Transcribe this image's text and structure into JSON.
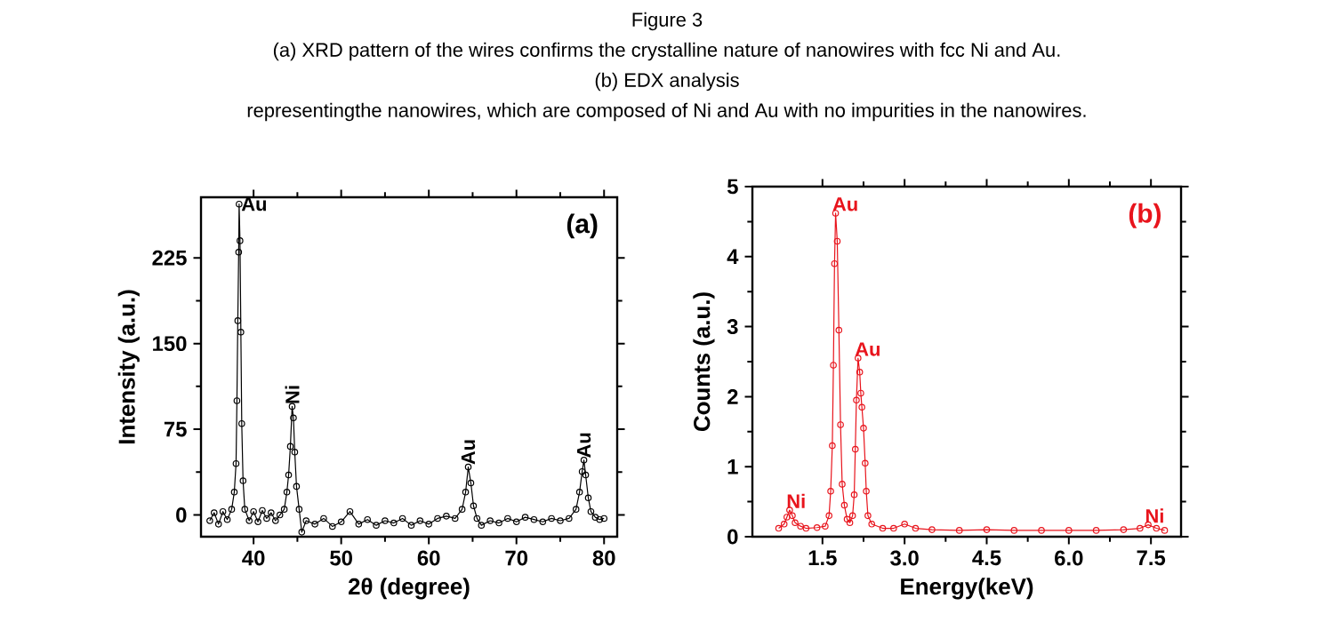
{
  "chart_data": [
    {
      "type": "other",
      "title": "Figure 3",
      "annotations": [
        "(a) XRD pattern of the wires confirms the crystalline nature of nanowires with fcc Ni and Au.",
        "(b) EDX analysis",
        "representingthe nanowires, which are composed of Ni and Au with no impurities in the nanowires."
      ]
    },
    {
      "type": "line",
      "title": "(a)",
      "xlabel": "2θ (degree)",
      "ylabel": "Intensity (a.u.)",
      "marker": "circle",
      "line_style": "solid",
      "xlim": [
        34,
        81.5
      ],
      "xticks": [
        40,
        50,
        60,
        70,
        80
      ],
      "ylim": [
        -19,
        278
      ],
      "yticks": [
        0,
        75,
        150,
        225
      ],
      "annotations": [
        {
          "text": "Au",
          "x": 38.35,
          "y": 272
        },
        {
          "text": "Ni",
          "x": 44.4,
          "y": 95
        },
        {
          "text": "Au",
          "x": 64.5,
          "y": 42
        },
        {
          "text": "Au",
          "x": 77.7,
          "y": 48
        }
      ],
      "series": [
        {
          "color": "#000000",
          "x": [
            35,
            35.5,
            36,
            36.5,
            37,
            37.5,
            37.8,
            38,
            38.1,
            38.2,
            38.3,
            38.35,
            38.45,
            38.55,
            38.65,
            38.8,
            39,
            39.5,
            40,
            40.5,
            41,
            41.5,
            42,
            42.5,
            43,
            43.5,
            43.8,
            44,
            44.2,
            44.4,
            44.55,
            44.7,
            44.9,
            45.2,
            45.5,
            46,
            47,
            48,
            49,
            50,
            51,
            52,
            53,
            54,
            55,
            56,
            57,
            58,
            59,
            60,
            61,
            62,
            63,
            63.8,
            64.2,
            64.5,
            64.8,
            65.1,
            65.5,
            66,
            67,
            68,
            69,
            70,
            71,
            72,
            73,
            74,
            75,
            76,
            76.8,
            77.2,
            77.5,
            77.7,
            77.9,
            78.2,
            78.5,
            79,
            79.5,
            80
          ],
          "values": [
            -5,
            2,
            -8,
            3,
            -4,
            5,
            20,
            45,
            100,
            170,
            230,
            272,
            240,
            160,
            80,
            30,
            5,
            -5,
            3,
            -6,
            4,
            -3,
            2,
            -5,
            0,
            5,
            20,
            35,
            60,
            95,
            85,
            55,
            25,
            5,
            -15,
            -5,
            -8,
            -3,
            -10,
            -6,
            3,
            -8,
            -4,
            -9,
            -5,
            -7,
            -3,
            -9,
            -5,
            -8,
            -3,
            -1,
            -3,
            5,
            20,
            42,
            28,
            8,
            -3,
            -9,
            -5,
            -7,
            -3,
            -6,
            -2,
            -4,
            -6,
            -3,
            -5,
            -3,
            5,
            20,
            38,
            48,
            35,
            15,
            3,
            -2,
            -4,
            -3
          ]
        }
      ]
    },
    {
      "type": "line",
      "title": "(b)",
      "xlabel": "Energy(keV)",
      "ylabel": "Counts (a.u.)",
      "marker": "circle",
      "line_style": "solid",
      "xlim": [
        0.22,
        8.05
      ],
      "xticks": [
        1.5,
        {
          "value": 3,
          "label": "3.0"
        },
        4.5,
        {
          "value": 6,
          "label": "6.0"
        },
        7.5
      ],
      "ylim": [
        0,
        5
      ],
      "yticks": [
        0,
        1,
        2,
        3,
        4,
        5
      ],
      "annotations": [
        {
          "text": "Ni",
          "x": 0.9,
          "y": 0.38
        },
        {
          "text": "Au",
          "x": 1.74,
          "y": 4.62
        },
        {
          "text": "Au",
          "x": 2.15,
          "y": 2.55
        },
        {
          "text": "Ni",
          "x": 7.45,
          "y": 0.17
        }
      ],
      "series": [
        {
          "color": "#e8141c",
          "x": [
            0.7,
            0.8,
            0.85,
            0.9,
            0.95,
            1.0,
            1.1,
            1.2,
            1.4,
            1.55,
            1.62,
            1.65,
            1.68,
            1.7,
            1.72,
            1.74,
            1.77,
            1.8,
            1.83,
            1.86,
            1.9,
            1.95,
            2.0,
            2.05,
            2.08,
            2.1,
            2.12,
            2.15,
            2.18,
            2.2,
            2.22,
            2.25,
            2.28,
            2.3,
            2.33,
            2.4,
            2.6,
            2.8,
            3.0,
            3.2,
            3.5,
            4,
            4.5,
            5,
            5.5,
            6,
            6.5,
            7,
            7.3,
            7.45,
            7.6,
            7.75
          ],
          "values": [
            0.12,
            0.18,
            0.28,
            0.38,
            0.3,
            0.2,
            0.15,
            0.12,
            0.13,
            0.15,
            0.3,
            0.65,
            1.3,
            2.45,
            3.9,
            4.62,
            4.22,
            2.95,
            1.6,
            0.75,
            0.45,
            0.25,
            0.2,
            0.3,
            0.6,
            1.25,
            1.95,
            2.55,
            2.35,
            2.05,
            1.85,
            1.55,
            1.05,
            0.65,
            0.3,
            0.18,
            0.12,
            0.12,
            0.18,
            0.12,
            0.1,
            0.09,
            0.1,
            0.09,
            0.09,
            0.09,
            0.09,
            0.1,
            0.12,
            0.17,
            0.12,
            0.09
          ]
        }
      ]
    }
  ]
}
